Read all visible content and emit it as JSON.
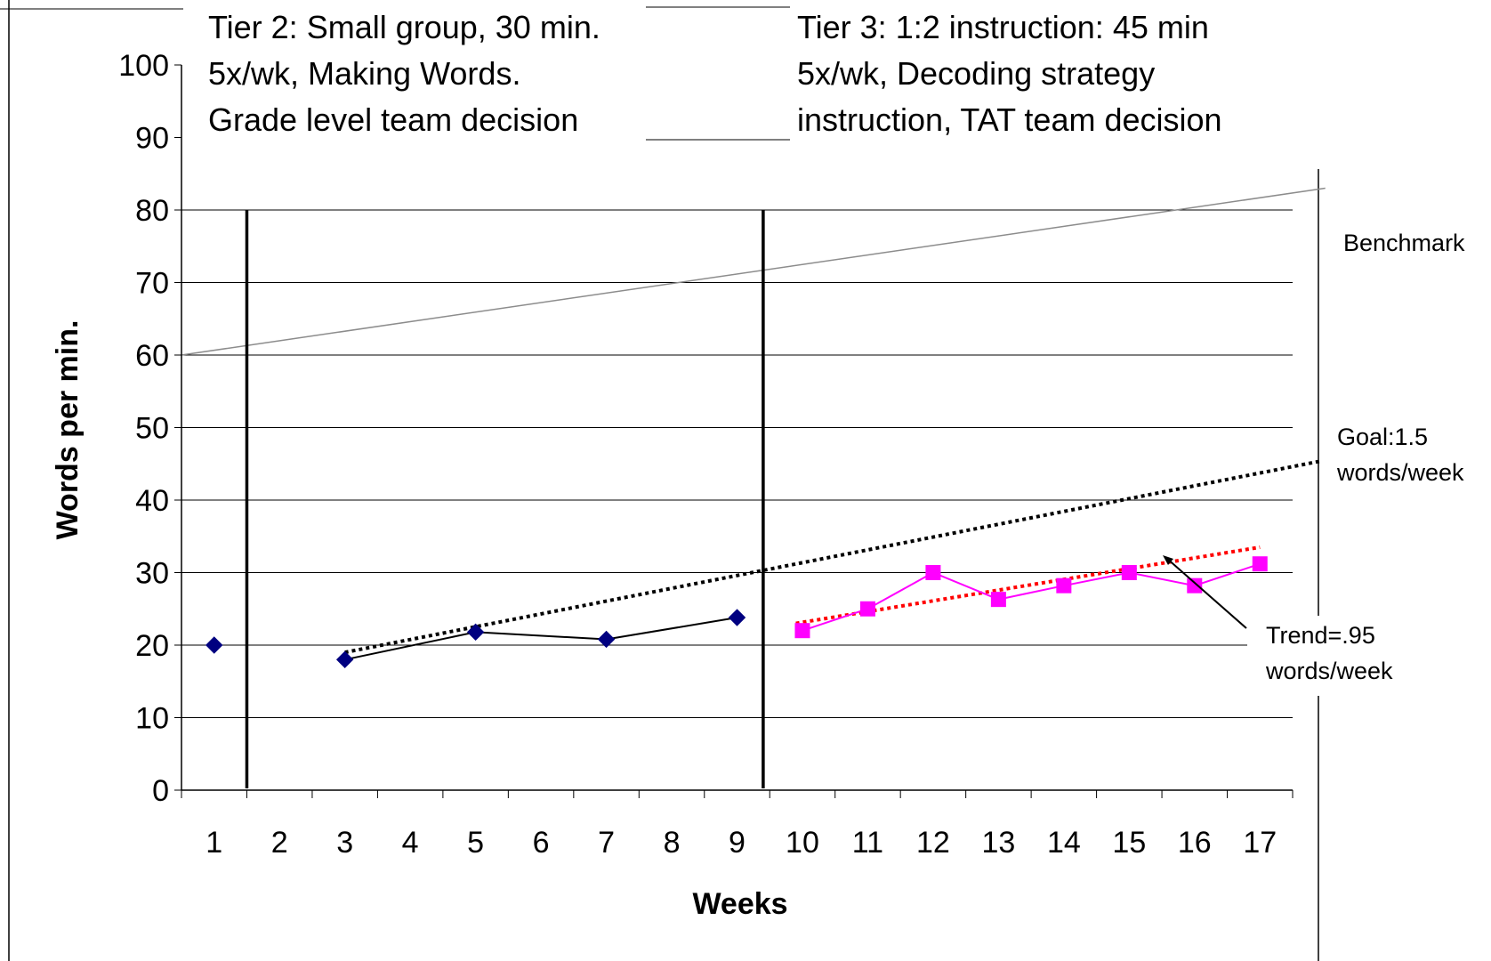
{
  "chart_data": {
    "type": "line",
    "title": "",
    "xlabel": "Weeks",
    "ylabel": "Words per min.",
    "categories": [
      "1",
      "2",
      "3",
      "4",
      "5",
      "6",
      "7",
      "8",
      "9",
      "10",
      "11",
      "12",
      "13",
      "14",
      "15",
      "16",
      "17"
    ],
    "ylim": [
      0,
      100
    ],
    "yticks": [
      0,
      10,
      20,
      30,
      40,
      50,
      60,
      70,
      80,
      90,
      100
    ],
    "grid": "horizontal",
    "series": [
      {
        "key": "baseline",
        "color": "#000080",
        "marker": "diamond",
        "connected": false,
        "points": [
          [
            1,
            20
          ]
        ]
      },
      {
        "key": "tier2",
        "color": "#000080",
        "marker": "diamond",
        "line_color": "#000000",
        "connected": true,
        "points": [
          [
            3,
            18
          ],
          [
            5,
            21.8
          ],
          [
            7,
            20.8
          ],
          [
            9,
            23.8
          ]
        ]
      },
      {
        "key": "tier3",
        "color": "#ff00ff",
        "marker": "square",
        "line_color": "#ff00ff",
        "connected": true,
        "points": [
          [
            10,
            22
          ],
          [
            11,
            25
          ],
          [
            12,
            30
          ],
          [
            13,
            26.3
          ],
          [
            14,
            28.2
          ],
          [
            15,
            30
          ],
          [
            16,
            28.2
          ],
          [
            17,
            31.2
          ]
        ]
      }
    ],
    "reference_lines": [
      {
        "key": "benchmark",
        "style": "solid",
        "color": "#8c8c8c",
        "from": [
          0.5,
          60
        ],
        "to": [
          18.0,
          83
        ]
      },
      {
        "key": "goal",
        "style": "dotted",
        "color": "#000000",
        "from": [
          3,
          19
        ],
        "to": [
          18.0,
          45.5
        ]
      },
      {
        "key": "trend",
        "style": "dotted",
        "color": "#ff0000",
        "from": [
          9.9,
          23
        ],
        "to": [
          17,
          33.5
        ]
      }
    ],
    "phase_lines_x": [
      1.5,
      9.4
    ],
    "annotations": {
      "tier2": [
        "Tier 2: Small group, 30 min.",
        "5x/wk, Making Words.",
        "Grade level team decision"
      ],
      "tier3": [
        "Tier 3: 1:2 instruction: 45 min",
        "5x/wk, Decoding strategy",
        "instruction, TAT team decision"
      ],
      "benchmark": [
        "Benchmark"
      ],
      "goal": [
        "Goal:1.5",
        "words/week"
      ],
      "trend": [
        "Trend=.95",
        "words/week"
      ]
    }
  }
}
